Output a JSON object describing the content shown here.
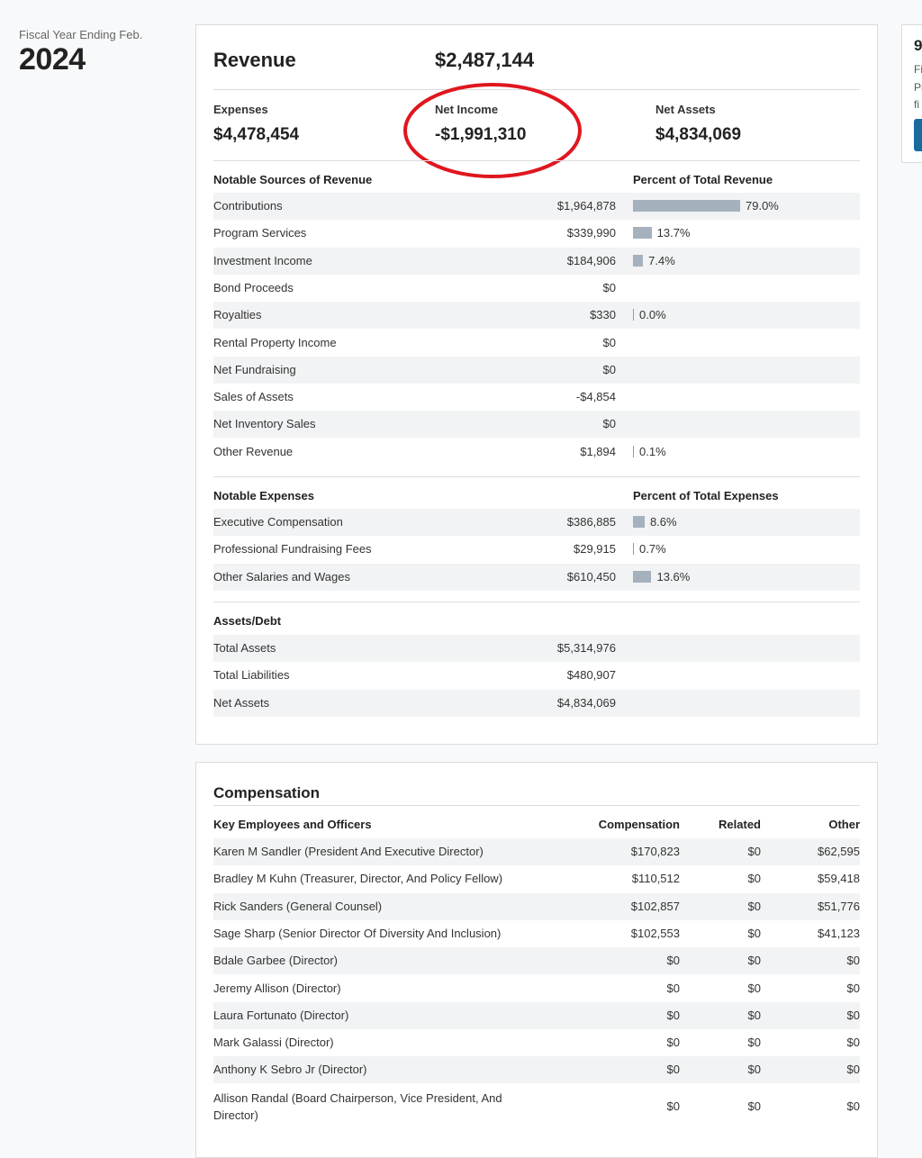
{
  "fiscal": {
    "label": "Fiscal Year Ending Feb.",
    "year": "2024"
  },
  "summary": {
    "revenue_label": "Revenue",
    "revenue_value": "$2,487,144",
    "expenses_label": "Expenses",
    "expenses_value": "$4,478,454",
    "net_income_label": "Net Income",
    "net_income_value": "-$1,991,310",
    "net_assets_label": "Net Assets",
    "net_assets_value": "$4,834,069"
  },
  "revenue": {
    "heading": "Notable Sources of Revenue",
    "pct_heading": "Percent of Total Revenue",
    "rows": [
      {
        "label": "Contributions",
        "amount": "$1,964,878",
        "pct": "79.0%",
        "pct_value": 79.0
      },
      {
        "label": "Program Services",
        "amount": "$339,990",
        "pct": "13.7%",
        "pct_value": 13.7
      },
      {
        "label": "Investment Income",
        "amount": "$184,906",
        "pct": "7.4%",
        "pct_value": 7.4
      },
      {
        "label": "Bond Proceeds",
        "amount": "$0",
        "pct": "",
        "pct_value": null
      },
      {
        "label": "Royalties",
        "amount": "$330",
        "pct": "0.0%",
        "pct_value": 0.0
      },
      {
        "label": "Rental Property Income",
        "amount": "$0",
        "pct": "",
        "pct_value": null
      },
      {
        "label": "Net Fundraising",
        "amount": "$0",
        "pct": "",
        "pct_value": null
      },
      {
        "label": "Sales of Assets",
        "amount": "-$4,854",
        "pct": "",
        "pct_value": null
      },
      {
        "label": "Net Inventory Sales",
        "amount": "$0",
        "pct": "",
        "pct_value": null
      },
      {
        "label": "Other Revenue",
        "amount": "$1,894",
        "pct": "0.1%",
        "pct_value": 0.1
      }
    ]
  },
  "expenses": {
    "heading": "Notable Expenses",
    "pct_heading": "Percent of Total Expenses",
    "rows": [
      {
        "label": "Executive Compensation",
        "amount": "$386,885",
        "pct": "8.6%",
        "pct_value": 8.6
      },
      {
        "label": "Professional Fundraising Fees",
        "amount": "$29,915",
        "pct": "0.7%",
        "pct_value": 0.7
      },
      {
        "label": "Other Salaries and Wages",
        "amount": "$610,450",
        "pct": "13.6%",
        "pct_value": 13.6
      }
    ]
  },
  "assets": {
    "heading": "Assets/Debt",
    "rows": [
      {
        "label": "Total Assets",
        "amount": "$5,314,976"
      },
      {
        "label": "Total Liabilities",
        "amount": "$480,907"
      },
      {
        "label": "Net Assets",
        "amount": "$4,834,069"
      }
    ]
  },
  "compensation": {
    "title": "Compensation",
    "col_name": "Key Employees and Officers",
    "col_comp": "Compensation",
    "col_related": "Related",
    "col_other": "Other",
    "rows": [
      {
        "name": "Karen M Sandler (President And Executive Director)",
        "comp": "$170,823",
        "related": "$0",
        "other": "$62,595"
      },
      {
        "name": "Bradley M Kuhn (Treasurer, Director, And Policy Fellow)",
        "comp": "$110,512",
        "related": "$0",
        "other": "$59,418"
      },
      {
        "name": "Rick Sanders (General Counsel)",
        "comp": "$102,857",
        "related": "$0",
        "other": "$51,776"
      },
      {
        "name": "Sage Sharp (Senior Director Of Diversity And Inclusion)",
        "comp": "$102,553",
        "related": "$0",
        "other": "$41,123"
      },
      {
        "name": "Bdale Garbee (Director)",
        "comp": "$0",
        "related": "$0",
        "other": "$0"
      },
      {
        "name": "Jeremy Allison (Director)",
        "comp": "$0",
        "related": "$0",
        "other": "$0"
      },
      {
        "name": "Laura Fortunato (Director)",
        "comp": "$0",
        "related": "$0",
        "other": "$0"
      },
      {
        "name": "Mark Galassi (Director)",
        "comp": "$0",
        "related": "$0",
        "other": "$0"
      },
      {
        "name": "Anthony K Sebro Jr (Director)",
        "comp": "$0",
        "related": "$0",
        "other": "$0"
      },
      {
        "name": "Allison Randal (Board Chairperson, Vice President, And Director)",
        "comp": "$0",
        "related": "$0",
        "other": "$0"
      }
    ]
  },
  "side": {
    "num": "9",
    "lines": [
      "Fi",
      "Pr",
      "fi"
    ]
  },
  "colors": {
    "bar": "#a5b1bc",
    "annotation": "#e0161e",
    "button": "#1a6aa0"
  }
}
